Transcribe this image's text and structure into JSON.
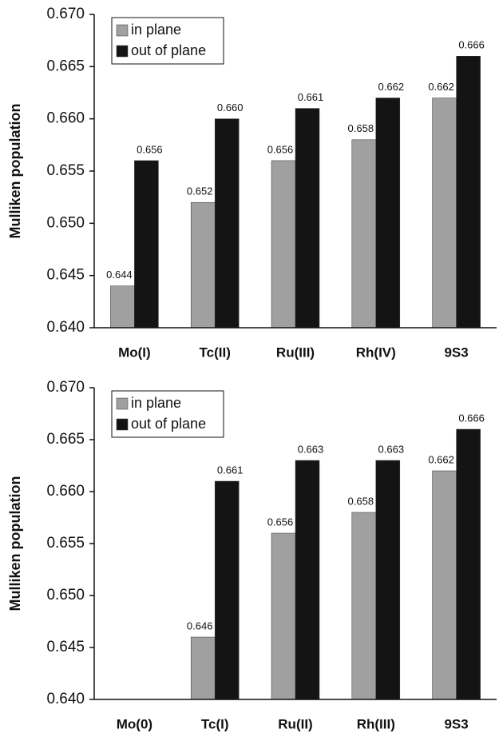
{
  "chart_data": [
    {
      "type": "bar",
      "y_label": "Mulliken population",
      "categories": [
        "Mo(I)",
        "Tc(II)",
        "Ru(III)",
        "Rh(IV)",
        "9S3"
      ],
      "series": [
        {
          "name": "in plane",
          "color": "#a0a0a0",
          "values": [
            0.644,
            0.652,
            0.656,
            0.658,
            0.662
          ],
          "value_labels": [
            "0.644",
            "0.652",
            "0.656",
            "0.658",
            "0.662"
          ]
        },
        {
          "name": "out of plane",
          "color": "#141414",
          "values": [
            0.656,
            0.66,
            0.661,
            0.662,
            0.666
          ],
          "value_labels": [
            "0.656",
            "0.660",
            "0.661",
            "0.662",
            "0.666"
          ]
        }
      ],
      "ylim": [
        0.64,
        0.67
      ],
      "yticks": [
        {
          "value": 0.64,
          "label": "0.640"
        },
        {
          "value": 0.645,
          "label": "0.645"
        },
        {
          "value": 0.65,
          "label": "0.650"
        },
        {
          "value": 0.655,
          "label": "0.655"
        },
        {
          "value": 0.66,
          "label": "0.660"
        },
        {
          "value": 0.665,
          "label": "0.665"
        },
        {
          "value": 0.67,
          "label": "0.670"
        }
      ],
      "legend": "top-left",
      "grid": false
    },
    {
      "type": "bar",
      "y_label": "Mulliken population",
      "categories": [
        "Mo(0)",
        "Tc(I)",
        "Ru(II)",
        "Rh(III)",
        "9S3"
      ],
      "series": [
        {
          "name": "in plane",
          "color": "#a0a0a0",
          "values": [
            null,
            0.646,
            0.656,
            0.658,
            0.662
          ],
          "value_labels": [
            null,
            "0.646",
            "0.656",
            "0.658",
            "0.662"
          ]
        },
        {
          "name": "out of plane",
          "color": "#141414",
          "values": [
            null,
            0.661,
            0.663,
            0.663,
            0.666
          ],
          "value_labels": [
            null,
            "0.661",
            "0.663",
            "0.663",
            "0.666"
          ]
        }
      ],
      "ylim": [
        0.64,
        0.67
      ],
      "yticks": [
        {
          "value": 0.64,
          "label": "0.640"
        },
        {
          "value": 0.645,
          "label": "0.645"
        },
        {
          "value": 0.65,
          "label": "0.650"
        },
        {
          "value": 0.655,
          "label": "0.655"
        },
        {
          "value": 0.66,
          "label": "0.660"
        },
        {
          "value": 0.665,
          "label": "0.665"
        },
        {
          "value": 0.67,
          "label": "0.670"
        }
      ],
      "legend": "top-left",
      "grid": false
    }
  ]
}
